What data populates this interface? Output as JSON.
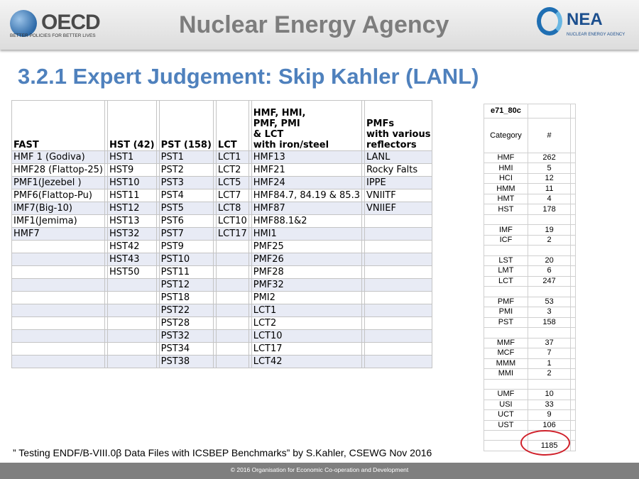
{
  "header": {
    "oecd_word": "OECD",
    "oecd_tagline": "BETTER POLICIES FOR BETTER LIVES",
    "agency": "Nuclear Energy Agency",
    "nea_word": "NEA",
    "nea_sub": "NUCLEAR ENERGY AGENCY"
  },
  "title": "3.2.1 Expert Judgement: Skip Kahler (LANL)",
  "table": {
    "headers": [
      "FAST",
      "",
      "HST (42)",
      "",
      "PST  (158)",
      "",
      "LCT",
      "",
      "HMF, HMI,\nPMF, PMI\n& LCT\n with iron/steel",
      "",
      "PMFs\n with various\nreflectors"
    ],
    "rows": [
      [
        "HMF 1 (Godiva)",
        "HST1",
        "PST1",
        "LCT1",
        "HMF13",
        "LANL"
      ],
      [
        "HMF28 (Flattop-25)",
        "HST9",
        "PST2",
        "LCT2",
        "HMF21",
        "Rocky Falts"
      ],
      [
        "PMF1(Jezebel )",
        "HST10",
        "PST3",
        "LCT5",
        "HMF24",
        "IPPE"
      ],
      [
        "PMF6(Flattop-Pu)",
        "HST11",
        "PST4",
        "LCT7",
        "HMF84.7, 84.19 & 85.3",
        "VNIITF"
      ],
      [
        "IMF7(Big-10)",
        "HST12",
        "PST5",
        "LCT8",
        "HMF87",
        "VNIIEF"
      ],
      [
        "IMF1(Jemima)",
        "HST13",
        "PST6",
        "LCT10",
        "HMF88.1&2",
        ""
      ],
      [
        "HMF7",
        "HST32",
        "PST7",
        "LCT17",
        "HMI1",
        ""
      ],
      [
        "",
        "HST42",
        "PST9",
        "",
        "PMF25",
        ""
      ],
      [
        "",
        "HST43",
        "PST10",
        "",
        "PMF26",
        ""
      ],
      [
        "",
        "HST50",
        "PST11",
        "",
        "PMF28",
        ""
      ],
      [
        "",
        "",
        "PST12",
        "",
        "PMF32",
        ""
      ],
      [
        "",
        "",
        "PST18",
        "",
        "PMI2",
        ""
      ],
      [
        "",
        "",
        "PST22",
        "",
        "LCT1",
        ""
      ],
      [
        "",
        "",
        "PST28",
        "",
        "LCT2",
        ""
      ],
      [
        "",
        "",
        "PST32",
        "",
        "LCT10",
        ""
      ],
      [
        "",
        "",
        "PST34",
        "",
        "LCT17",
        ""
      ],
      [
        "",
        "",
        "PST38",
        "",
        "LCT42",
        ""
      ]
    ]
  },
  "side_table": {
    "label": "e71_80c",
    "col1": "Category",
    "col2": "#",
    "rows": [
      [
        "HMF",
        "262"
      ],
      [
        "HMI",
        "5"
      ],
      [
        "HCI",
        "12"
      ],
      [
        "HMM",
        "11"
      ],
      [
        "HMT",
        "4"
      ],
      [
        "HST",
        "178"
      ],
      [
        "",
        ""
      ],
      [
        "IMF",
        "19"
      ],
      [
        "ICF",
        "2"
      ],
      [
        "",
        ""
      ],
      [
        "LST",
        "20"
      ],
      [
        "LMT",
        "6"
      ],
      [
        "LCT",
        "247"
      ],
      [
        "",
        ""
      ],
      [
        "PMF",
        "53"
      ],
      [
        "PMI",
        "3"
      ],
      [
        "PST",
        "158"
      ],
      [
        "",
        ""
      ],
      [
        "MMF",
        "37"
      ],
      [
        "MCF",
        "7"
      ],
      [
        "MMM",
        "1"
      ],
      [
        "MMI",
        "2"
      ],
      [
        "",
        ""
      ],
      [
        "UMF",
        "10"
      ],
      [
        "USI",
        "33"
      ],
      [
        "UCT",
        "9"
      ],
      [
        "UST",
        "106"
      ],
      [
        "",
        ""
      ]
    ],
    "total": "1185"
  },
  "citation": "” Testing ENDF/B-VIII.0β Data Files with ICSBEP Benchmarks” by S.Kahler, CSEWG Nov 2016",
  "footer": "© 2016 Organisation for Economic Co-operation and Development",
  "colors": {
    "title": "#4f81bd",
    "row_band": "#e8ebf5",
    "highlight_ring": "#d0202a",
    "footer_bg": "#7f7f7f"
  }
}
